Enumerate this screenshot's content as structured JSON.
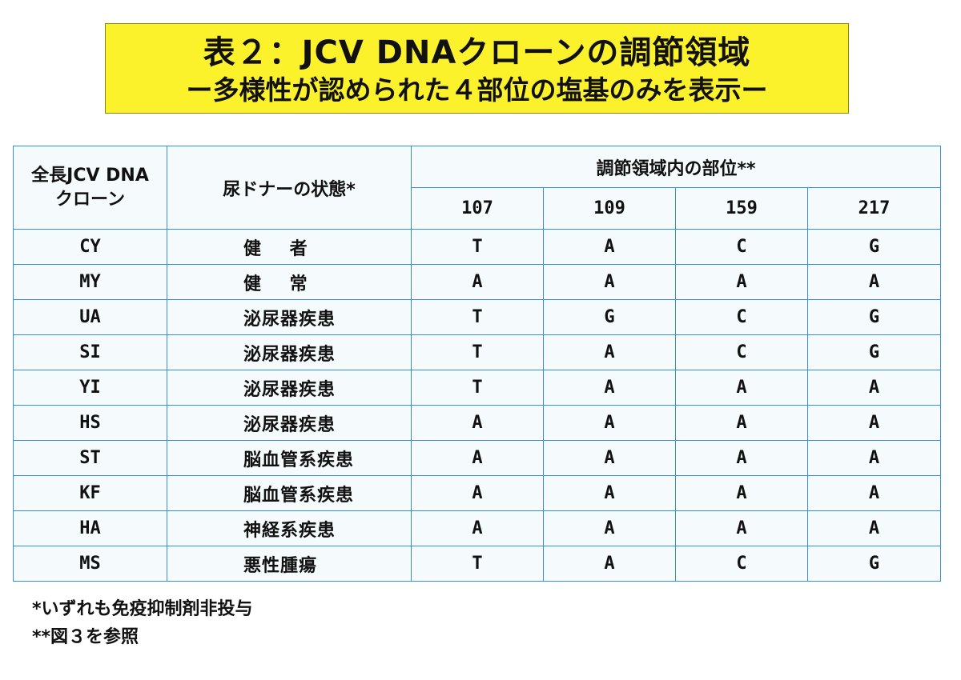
{
  "title": {
    "line1": "表２：JCV DNAクローンの調節領域",
    "line2": "ー多様性が認められた４部位の塩基のみを表示ー"
  },
  "table": {
    "header": {
      "clone_line1": "全長JCV DNA",
      "clone_line2": "クローン",
      "condition": "尿ドナーの状態*",
      "sites_group": "調節領域内の部位**",
      "sites": [
        "107",
        "109",
        "159",
        "217"
      ]
    },
    "rows": [
      {
        "clone": "CY",
        "condition": "健 者",
        "bases": [
          "T",
          "A",
          "C",
          "G"
        ]
      },
      {
        "clone": "MY",
        "condition": "健 常",
        "bases": [
          "A",
          "A",
          "A",
          "A"
        ]
      },
      {
        "clone": "UA",
        "condition": "泌尿器疾患",
        "bases": [
          "T",
          "G",
          "C",
          "G"
        ]
      },
      {
        "clone": "SI",
        "condition": "泌尿器疾患",
        "bases": [
          "T",
          "A",
          "C",
          "G"
        ]
      },
      {
        "clone": "YI",
        "condition": "泌尿器疾患",
        "bases": [
          "T",
          "A",
          "A",
          "A"
        ]
      },
      {
        "clone": "HS",
        "condition": "泌尿器疾患",
        "bases": [
          "A",
          "A",
          "A",
          "A"
        ]
      },
      {
        "clone": "ST",
        "condition": "脳血管系疾患",
        "bases": [
          "A",
          "A",
          "A",
          "A"
        ]
      },
      {
        "clone": "KF",
        "condition": "脳血管系疾患",
        "bases": [
          "A",
          "A",
          "A",
          "A"
        ]
      },
      {
        "clone": "HA",
        "condition": "神経系疾患",
        "bases": [
          "A",
          "A",
          "A",
          "A"
        ]
      },
      {
        "clone": "MS",
        "condition": "悪性腫瘍",
        "bases": [
          "T",
          "A",
          "C",
          "G"
        ]
      }
    ]
  },
  "footnotes": {
    "note1": "*いずれも免疫抑制剤非投与",
    "note2": "**図３を参照"
  }
}
